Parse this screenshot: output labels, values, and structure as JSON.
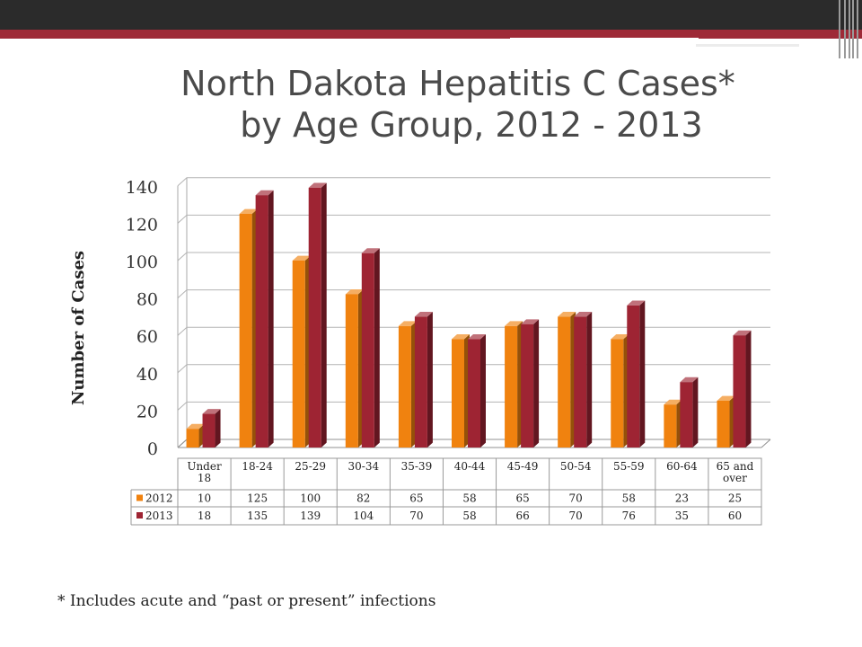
{
  "title_line1": "North Dakota Hepatitis C Cases*",
  "title_line2": "by Age Group, 2012 - 2013",
  "footnote": "* Includes acute and “past or present” infections",
  "chart_data": {
    "type": "bar",
    "ylabel": "Number of Cases",
    "ylim": [
      0,
      140
    ],
    "yticks": [
      0,
      20,
      40,
      60,
      80,
      100,
      120,
      140
    ],
    "grid": true,
    "legend": "data-table",
    "categories": [
      "Under 18",
      "18-24",
      "25-29",
      "30-34",
      "35-39",
      "40-44",
      "45-49",
      "50-54",
      "55-59",
      "60-64",
      "65 and over"
    ],
    "series": [
      {
        "name": "2012",
        "color": "#f0820f",
        "values": [
          10,
          125,
          100,
          82,
          65,
          58,
          65,
          70,
          58,
          23,
          25
        ]
      },
      {
        "name": "2013",
        "color": "#9e2433",
        "values": [
          18,
          135,
          139,
          104,
          70,
          58,
          66,
          70,
          76,
          35,
          60
        ]
      }
    ]
  }
}
